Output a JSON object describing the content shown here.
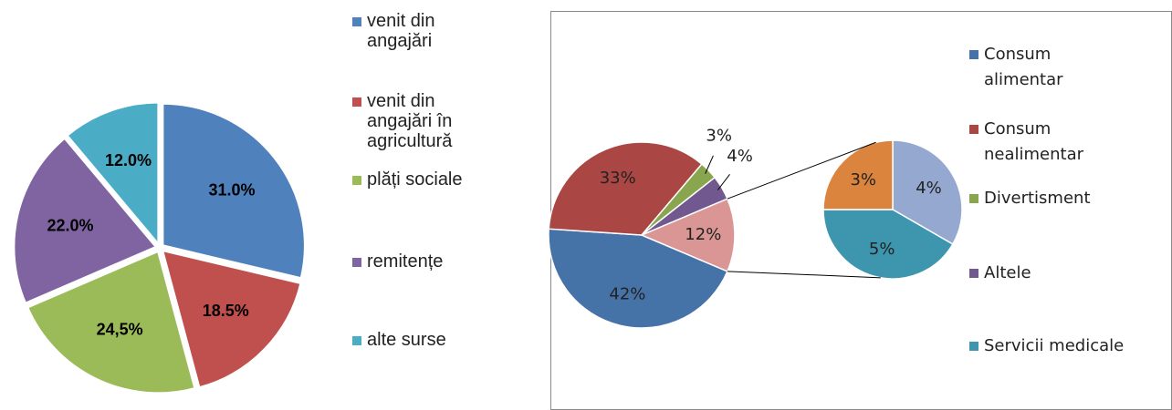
{
  "chart_data": [
    {
      "type": "pie",
      "categories": [
        "venit din angajări",
        "venit din angajări în agricultură",
        "plăți sociale",
        "remitențe",
        "alte surse"
      ],
      "values": [
        31.0,
        18.5,
        24.5,
        22.0,
        12.0
      ],
      "value_labels": [
        "31.0%",
        "18.5%",
        "24,5%",
        "22.0%",
        "12.0%"
      ],
      "colors": [
        "#4f81bd",
        "#c0504d",
        "#9bbb59",
        "#8064a2",
        "#4bacc6"
      ],
      "legend": "right"
    },
    {
      "type": "pie-of-pie",
      "categories": [
        "Consum alimentar",
        "Consum nealimentar",
        "Divertisment",
        "Altele",
        null
      ],
      "values": [
        42,
        33,
        3,
        4,
        12
      ],
      "value_labels": [
        "42%",
        "33%",
        "3%",
        "4%",
        "12%"
      ],
      "colors": [
        "#4572a7",
        "#aa4643",
        "#89a54e",
        "#71588f",
        "#da9694"
      ],
      "secondary": {
        "categories": [
          null,
          "Servicii medicale",
          null
        ],
        "values": [
          4,
          5,
          3
        ],
        "value_labels": [
          "4%",
          "5%",
          "3%"
        ],
        "colors": [
          "#95a8d0",
          "#3d96ae",
          "#db843d"
        ]
      },
      "legend": "right"
    }
  ]
}
